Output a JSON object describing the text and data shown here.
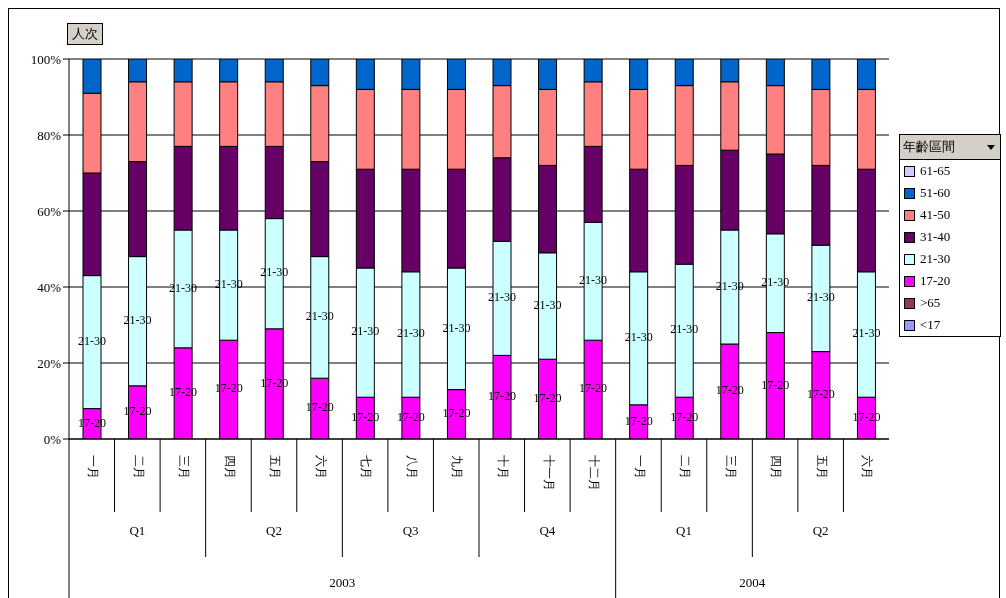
{
  "chart_data": {
    "type": "bar",
    "stacked": true,
    "ylabel": "人次",
    "legend_title": "年齡區間",
    "legend": "right",
    "grid": "y",
    "categories": [
      "一月",
      "二月",
      "三月",
      "四月",
      "五月",
      "六月",
      "七月",
      "八月",
      "九月",
      "十月",
      "十一月",
      "十二月",
      "一月",
      "二月",
      "三月",
      "四月",
      "五月",
      "六月"
    ],
    "annotations": [
      "Q1",
      "Q2",
      "Q3",
      "Q4",
      "Q1",
      "Q2",
      "2003",
      "2004"
    ],
    "ylim": [
      0,
      100
    ],
    "yticks": [
      {
        "value": 0,
        "label": "0%"
      },
      {
        "value": 20,
        "label": "20%"
      },
      {
        "value": 40,
        "label": "40%"
      },
      {
        "value": 60,
        "label": "60%"
      },
      {
        "value": 80,
        "label": "80%"
      },
      {
        "value": 100,
        "label": "100%"
      }
    ],
    "series": [
      {
        "name": "<17",
        "color": "#9999ff",
        "values": [
          0,
          0,
          0,
          0,
          0,
          0,
          0,
          0,
          0,
          0,
          0,
          0,
          0,
          0,
          0,
          0,
          0,
          0
        ]
      },
      {
        "name": ">65",
        "color": "#993366",
        "values": [
          0,
          0,
          0,
          0,
          0,
          0,
          0,
          0,
          0,
          0,
          0,
          0,
          0,
          0,
          0,
          0,
          0,
          0
        ]
      },
      {
        "name": "17-20",
        "color": "#ff00ff",
        "values": [
          8,
          14,
          24,
          26,
          29,
          16,
          11,
          11,
          13,
          22,
          21,
          26,
          9,
          11,
          25,
          28,
          23,
          11
        ],
        "value_labels": [
          "17-20",
          "17-20",
          "17-20",
          "17-20",
          "17-20",
          "17-20",
          "17-20",
          "17-20",
          "17-20",
          "17-20",
          "17-20",
          "17-20",
          "17-20",
          "17-20",
          "17-20",
          "17-20",
          "17-20",
          "17-20"
        ]
      },
      {
        "name": "21-30",
        "color": "#ccffff",
        "values": [
          35,
          34,
          31,
          29,
          29,
          32,
          34,
          33,
          32,
          30,
          28,
          31,
          35,
          35,
          30,
          26,
          28,
          33
        ],
        "value_labels": [
          "21-30",
          "21-30",
          "21-30",
          "21-30",
          "21-30",
          "21-30",
          "21-30",
          "21-30",
          "21-30",
          "21-30",
          "21-30",
          "21-30",
          "21-30",
          "21-30",
          "21-30",
          "21-30",
          "21-30",
          "21-30"
        ]
      },
      {
        "name": "31-40",
        "color": "#660066",
        "values": [
          27,
          25,
          22,
          22,
          19,
          25,
          26,
          27,
          26,
          22,
          23,
          20,
          27,
          26,
          21,
          21,
          21,
          27
        ]
      },
      {
        "name": "41-50",
        "color": "#ff8080",
        "values": [
          21,
          21,
          17,
          17,
          17,
          20,
          21,
          21,
          21,
          19,
          20,
          17,
          21,
          21,
          18,
          18,
          20,
          21
        ]
      },
      {
        "name": "51-60",
        "color": "#0066cc",
        "values": [
          9,
          6,
          6,
          6,
          6,
          7,
          8,
          8,
          8,
          7,
          8,
          6,
          8,
          7,
          6,
          7,
          8,
          8
        ]
      },
      {
        "name": "61-65",
        "color": "#ccccff",
        "values": [
          0,
          0,
          0,
          0,
          0,
          0,
          0,
          0,
          0,
          0,
          0,
          0,
          0,
          0,
          0,
          0,
          0,
          0
        ]
      }
    ]
  }
}
